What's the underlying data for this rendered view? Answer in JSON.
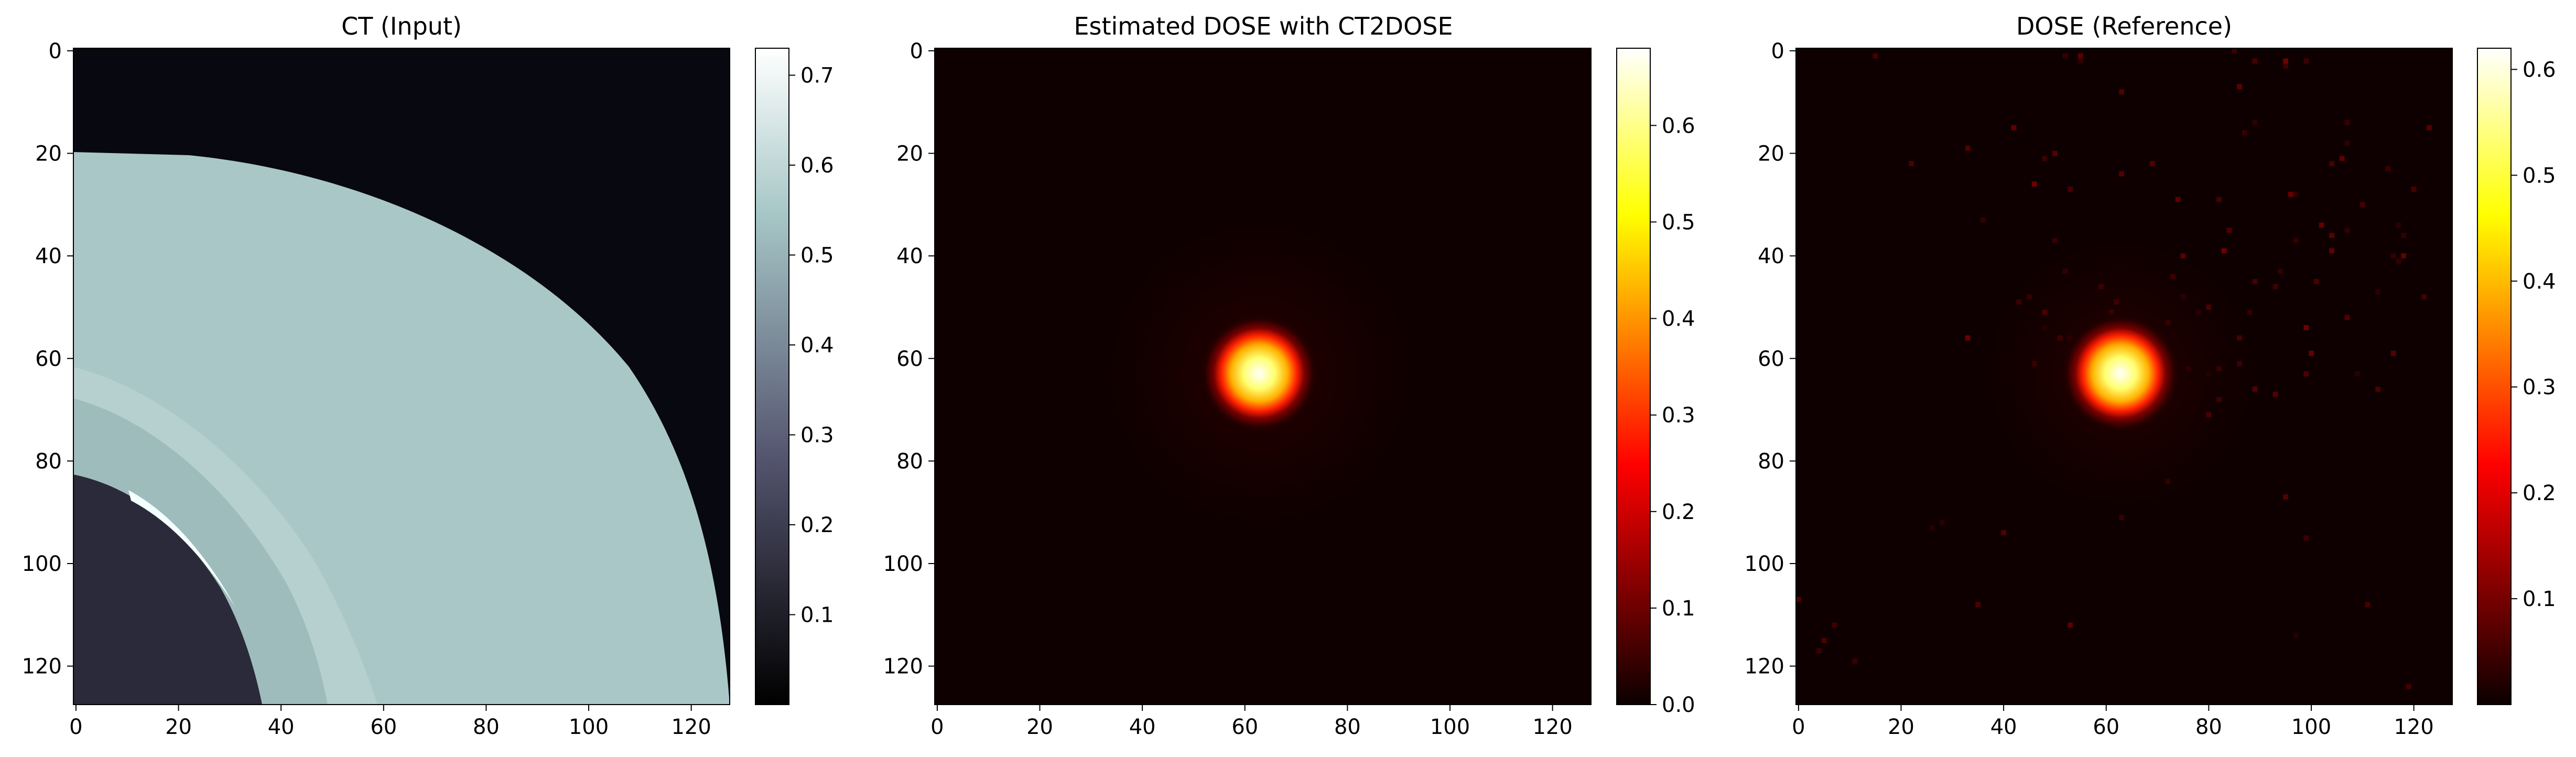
{
  "chart_data": [
    {
      "type": "heatmap",
      "title": "CT (Input)",
      "colormap": "bone",
      "x_ticks": [
        "0",
        "20",
        "40",
        "60",
        "80",
        "100",
        "120"
      ],
      "y_ticks": [
        "0",
        "20",
        "40",
        "60",
        "80",
        "100",
        "120"
      ],
      "x_range": [
        0,
        128
      ],
      "y_range": [
        0,
        128
      ],
      "colorbar_range": [
        0.0,
        0.73
      ],
      "colorbar_ticks": [
        "0.1",
        "0.2",
        "0.3",
        "0.4",
        "0.5",
        "0.6",
        "0.7"
      ],
      "description_values": {
        "background": 0.02,
        "outer_ring": 0.6,
        "inner_tissue": 0.55,
        "cavity": 0.1,
        "bright_streak": 0.73
      }
    },
    {
      "type": "heatmap",
      "title": "Estimated DOSE with CT2DOSE",
      "colormap": "hot",
      "x_ticks": [
        "0",
        "20",
        "40",
        "60",
        "80",
        "100",
        "120"
      ],
      "y_ticks": [
        "0",
        "20",
        "40",
        "60",
        "80",
        "100",
        "120"
      ],
      "x_range": [
        0,
        128
      ],
      "y_range": [
        0,
        128
      ],
      "colorbar_range": [
        0.0,
        0.68
      ],
      "colorbar_ticks": [
        "0.0",
        "0.1",
        "0.2",
        "0.3",
        "0.4",
        "0.5",
        "0.6"
      ],
      "hotspot_center": [
        63,
        63
      ],
      "hotspot_peak": 0.68
    },
    {
      "type": "heatmap",
      "title": "DOSE (Reference)",
      "colormap": "hot",
      "x_ticks": [
        "0",
        "20",
        "40",
        "60",
        "80",
        "100",
        "120"
      ],
      "y_ticks": [
        "0",
        "20",
        "40",
        "60",
        "80",
        "100",
        "120"
      ],
      "x_range": [
        0,
        128
      ],
      "y_range": [
        0,
        128
      ],
      "colorbar_range": [
        0.0,
        0.62
      ],
      "colorbar_ticks": [
        "0.1",
        "0.2",
        "0.3",
        "0.4",
        "0.5",
        "0.6"
      ],
      "hotspot_center": [
        63,
        63
      ],
      "hotspot_peak": 0.62
    }
  ]
}
